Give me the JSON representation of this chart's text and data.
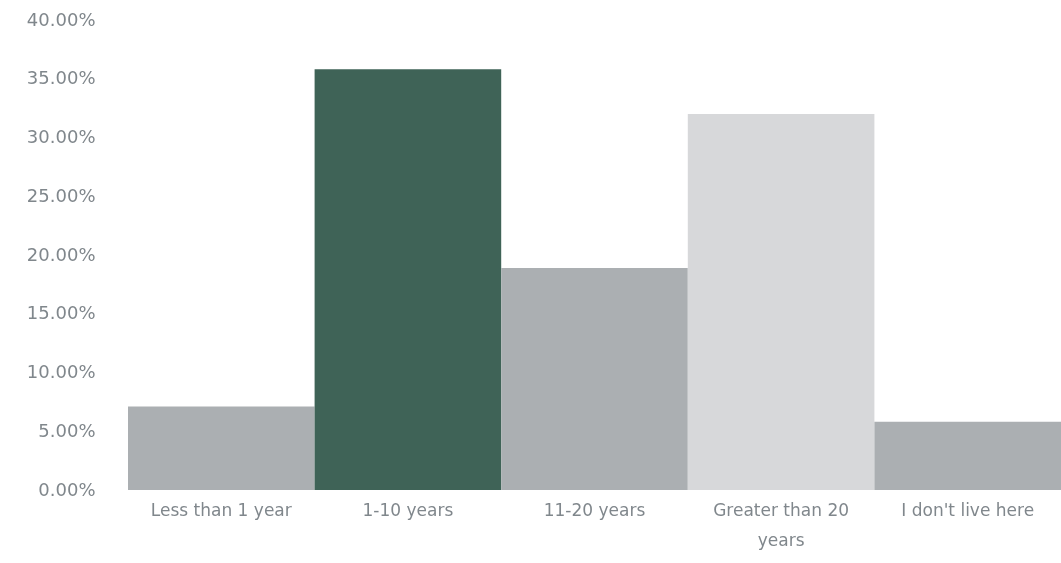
{
  "chart_data": {
    "type": "bar",
    "categories": [
      "Less than 1 year",
      "1-10 years",
      "11-20 years",
      "Greater than 20 years",
      "I don't live here"
    ],
    "values": [
      7.1,
      35.8,
      18.9,
      32.0,
      5.8
    ],
    "colors": [
      "#abafb2",
      "#3f6357",
      "#abafb2",
      "#d7d8da",
      "#abafb2"
    ],
    "ylim": [
      0,
      40
    ],
    "yticks": [
      {
        "value": 0,
        "label": "0.00%"
      },
      {
        "value": 5,
        "label": "5.00%"
      },
      {
        "value": 10,
        "label": "10.00%"
      },
      {
        "value": 15,
        "label": "15.00%"
      },
      {
        "value": 20,
        "label": "20.00%"
      },
      {
        "value": 25,
        "label": "25.00%"
      },
      {
        "value": 30,
        "label": "30.00%"
      },
      {
        "value": 35,
        "label": "35.00%"
      },
      {
        "value": 40,
        "label": "40.00%"
      }
    ]
  }
}
